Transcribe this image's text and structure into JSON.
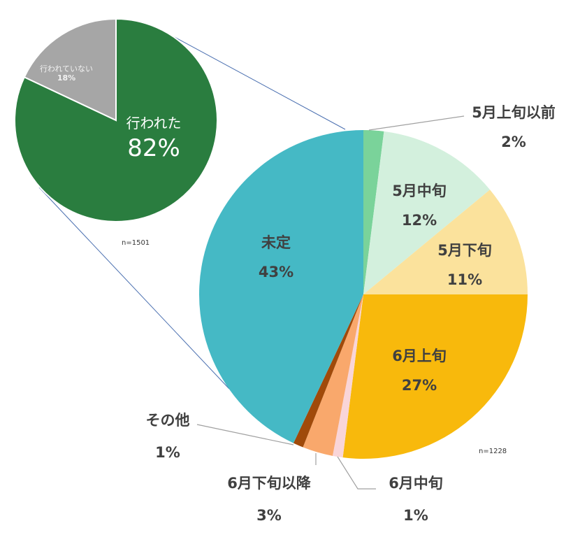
{
  "chart_data": [
    {
      "type": "pie",
      "title": "",
      "n_label": "n=1501",
      "categories": [
        "行われた",
        "行われていない"
      ],
      "values": [
        82,
        18
      ],
      "colors": [
        "#2a7d3f",
        "#a6a6a6"
      ]
    },
    {
      "type": "pie",
      "title": "",
      "n_label": "n=1228",
      "categories": [
        "5月上旬以前",
        "5月中旬",
        "5月下旬",
        "6月上旬",
        "6月中旬",
        "6月下旬以降",
        "その他",
        "未定"
      ],
      "values": [
        2,
        12,
        11,
        27,
        1,
        3,
        1,
        43
      ],
      "colors": [
        "#7ad39a",
        "#d3f0dd",
        "#fbe29c",
        "#f8b90c",
        "#f9d5d8",
        "#f9a86c",
        "#a04a0a",
        "#45b9c5"
      ]
    }
  ],
  "small_pie": {
    "done": {
      "label": "行われた",
      "pct": "82%"
    },
    "not_done": {
      "label": "行われていない",
      "pct": "18%"
    },
    "n": "n=1501"
  },
  "big_pie": {
    "n": "n=1228",
    "labels": {
      "early_may": {
        "label": "5月上旬以前",
        "pct": "2%"
      },
      "mid_may": {
        "label": "5月中旬",
        "pct": "12%"
      },
      "late_may": {
        "label": "5月下旬",
        "pct": "11%"
      },
      "early_june": {
        "label": "6月上旬",
        "pct": "27%"
      },
      "mid_june": {
        "label": "6月中旬",
        "pct": "1%"
      },
      "late_june": {
        "label": "6月下旬以降",
        "pct": "3%"
      },
      "other": {
        "label": "その他",
        "pct": "1%"
      },
      "undecided": {
        "label": "未定",
        "pct": "43%"
      }
    }
  }
}
